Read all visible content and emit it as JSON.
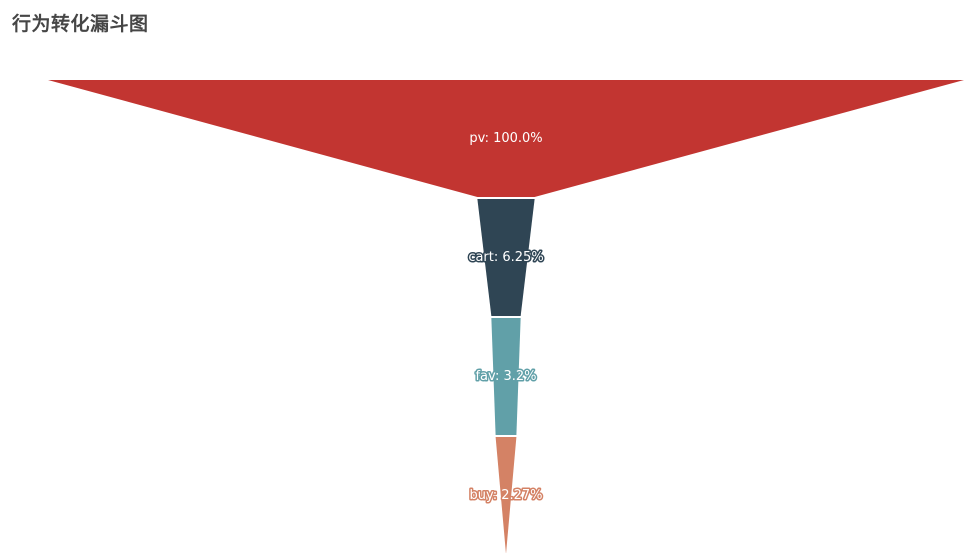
{
  "chart_data": {
    "type": "funnel",
    "title": "行为转化漏斗图",
    "sort": "descending",
    "stages": [
      {
        "name": "pv",
        "value": 100.0,
        "label": "pv: 100.0%",
        "color": "#c23531"
      },
      {
        "name": "cart",
        "value": 6.25,
        "label": "cart: 6.25%",
        "color": "#2f4554"
      },
      {
        "name": "fav",
        "value": 3.2,
        "label": "fav: 3.2%",
        "color": "#61a0a8"
      },
      {
        "name": "buy",
        "value": 2.27,
        "label": "buy: 2.27%",
        "color": "#d48265"
      }
    ],
    "label_position": "inside",
    "legend": "none",
    "grid": false
  }
}
